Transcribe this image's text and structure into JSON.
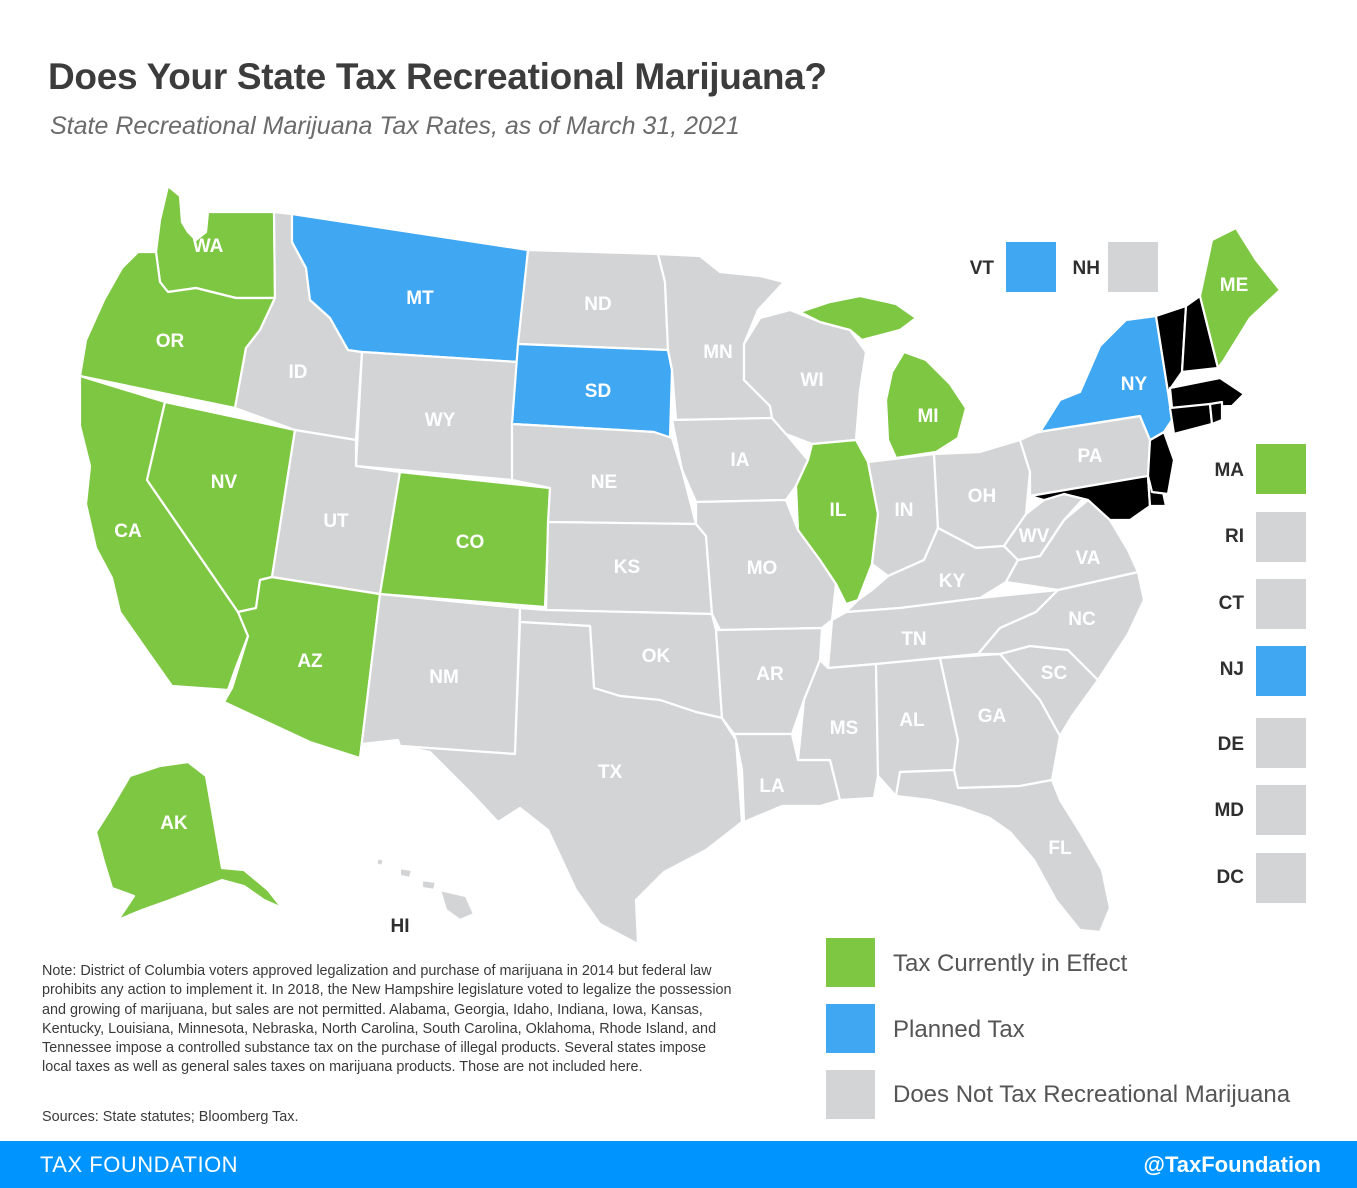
{
  "title": "Does Your State Tax Recreational Marijuana?",
  "subtitle": "State Recreational Marijuana Tax Rates, as of March 31, 2021",
  "colors": {
    "tax_in_effect": "#7dc742",
    "planned_tax": "#40a7f3",
    "no_tax": "#d3d4d6",
    "footer_bar": "#0094ff"
  },
  "states": {
    "WA": {
      "label": "WA",
      "status": "tax_in_effect"
    },
    "OR": {
      "label": "OR",
      "status": "tax_in_effect"
    },
    "CA": {
      "label": "CA",
      "status": "tax_in_effect"
    },
    "NV": {
      "label": "NV",
      "status": "tax_in_effect"
    },
    "AZ": {
      "label": "AZ",
      "status": "tax_in_effect"
    },
    "CO": {
      "label": "CO",
      "status": "tax_in_effect"
    },
    "IL": {
      "label": "IL",
      "status": "tax_in_effect"
    },
    "MI": {
      "label": "MI",
      "status": "tax_in_effect"
    },
    "ME": {
      "label": "ME",
      "status": "tax_in_effect"
    },
    "AK": {
      "label": "AK",
      "status": "tax_in_effect"
    },
    "MT": {
      "label": "MT",
      "status": "planned_tax"
    },
    "SD": {
      "label": "SD",
      "status": "planned_tax"
    },
    "NY": {
      "label": "NY",
      "status": "planned_tax"
    },
    "ID": {
      "label": "ID",
      "status": "no_tax"
    },
    "WY": {
      "label": "WY",
      "status": "no_tax"
    },
    "UT": {
      "label": "UT",
      "status": "no_tax"
    },
    "NM": {
      "label": "NM",
      "status": "no_tax"
    },
    "ND": {
      "label": "ND",
      "status": "no_tax"
    },
    "NE": {
      "label": "NE",
      "status": "no_tax"
    },
    "KS": {
      "label": "KS",
      "status": "no_tax"
    },
    "OK": {
      "label": "OK",
      "status": "no_tax"
    },
    "TX": {
      "label": "TX",
      "status": "no_tax"
    },
    "MN": {
      "label": "MN",
      "status": "no_tax"
    },
    "IA": {
      "label": "IA",
      "status": "no_tax"
    },
    "MO": {
      "label": "MO",
      "status": "no_tax"
    },
    "AR": {
      "label": "AR",
      "status": "no_tax"
    },
    "LA": {
      "label": "LA",
      "status": "no_tax"
    },
    "WI": {
      "label": "WI",
      "status": "no_tax"
    },
    "IN": {
      "label": "IN",
      "status": "no_tax"
    },
    "OH": {
      "label": "OH",
      "status": "no_tax"
    },
    "KY": {
      "label": "KY",
      "status": "no_tax"
    },
    "TN": {
      "label": "TN",
      "status": "no_tax"
    },
    "MS": {
      "label": "MS",
      "status": "no_tax"
    },
    "AL": {
      "label": "AL",
      "status": "no_tax"
    },
    "GA": {
      "label": "GA",
      "status": "no_tax"
    },
    "FL": {
      "label": "FL",
      "status": "no_tax"
    },
    "SC": {
      "label": "SC",
      "status": "no_tax"
    },
    "NC": {
      "label": "NC",
      "status": "no_tax"
    },
    "VA": {
      "label": "VA",
      "status": "no_tax"
    },
    "WV": {
      "label": "WV",
      "status": "no_tax"
    },
    "PA": {
      "label": "PA",
      "status": "no_tax"
    },
    "HI": {
      "label": "HI",
      "status": "no_tax"
    }
  },
  "northeast_top": [
    {
      "label": "VT",
      "status": "planned_tax"
    },
    {
      "label": "NH",
      "status": "no_tax"
    }
  ],
  "small_states": [
    {
      "label": "MA",
      "status": "tax_in_effect"
    },
    {
      "label": "RI",
      "status": "no_tax"
    },
    {
      "label": "CT",
      "status": "no_tax"
    },
    {
      "label": "NJ",
      "status": "planned_tax"
    },
    {
      "label": "DE",
      "status": "no_tax"
    },
    {
      "label": "MD",
      "status": "no_tax"
    },
    {
      "label": "DC",
      "status": "no_tax"
    }
  ],
  "legend": [
    {
      "label": "Tax Currently in Effect",
      "status": "tax_in_effect"
    },
    {
      "label": "Planned Tax",
      "status": "planned_tax"
    },
    {
      "label": "Does Not Tax Recreational Marijuana",
      "status": "no_tax"
    }
  ],
  "note": "Note: District of Columbia voters approved legalization and purchase of marijuana in 2014 but federal law prohibits any action to implement it. In 2018, the New Hampshire legislature voted to legalize the possession and growing of marijuana, but sales are not permitted. Alabama, Georgia, Idaho, Indiana, Iowa, Kansas, Kentucky, Louisiana, Minnesota, Nebraska, North Carolina, South Carolina, Oklahoma, Rhode Island, and Tennessee impose a controlled substance tax on the purchase of illegal products. Several states impose local taxes as well as general sales taxes on marijuana products. Those are not included here.",
  "sources": "Sources: State statutes; Bloomberg Tax.",
  "footer": {
    "left": "TAX FOUNDATION",
    "right": "@TaxFoundation"
  }
}
